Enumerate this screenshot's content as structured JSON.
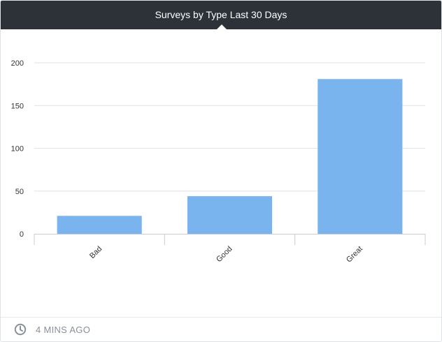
{
  "widget": {
    "title": "Surveys by Type Last 30 Days",
    "updated": "4 MINS AGO",
    "footer_icon": "clock-icon"
  },
  "colors": {
    "bar": "#7ab4ef",
    "header_bg": "#2d3239",
    "grid": "#e2e2e2",
    "axis": "#cccccc"
  },
  "chart_data": {
    "type": "bar",
    "categories": [
      "Bad",
      "Good",
      "Great"
    ],
    "values": [
      21,
      44,
      181
    ],
    "xlabel": "",
    "ylabel": "",
    "ylim": [
      0,
      200
    ],
    "yticks": [
      0,
      50,
      100,
      150,
      200
    ],
    "grid": true,
    "legend": "none"
  }
}
